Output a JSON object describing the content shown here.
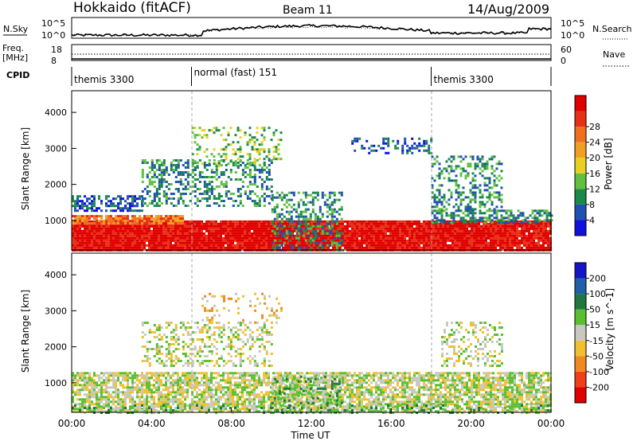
{
  "header": {
    "station": "Hokkaido (fitACF)",
    "beam": "Beam 11",
    "date": "14/Aug/2009"
  },
  "panels": {
    "nsky": {
      "label": "N.Sky",
      "y_ticks": [
        "10^5",
        "10^0"
      ]
    },
    "nsearch": {
      "label": "N.Search",
      "y_ticks": [
        "10^5",
        "10^0"
      ]
    },
    "freq": {
      "label_top": "Freq.",
      "label_bottom": "[MHz]",
      "y_ticks": [
        "18",
        "8"
      ]
    },
    "nave": {
      "label": "Nave",
      "y_ticks": [
        "60",
        "0"
      ]
    },
    "cpid": {
      "label": "CPID"
    }
  },
  "cpid_segments": [
    {
      "name": "themis 3300",
      "start_hour": 0,
      "end_hour": 6
    },
    {
      "name": "normal (fast) 151",
      "start_hour": 6,
      "end_hour": 18
    },
    {
      "name": "themis 3300",
      "start_hour": 18,
      "end_hour": 24
    }
  ],
  "axes": {
    "x_label": "Time UT",
    "x_ticks": [
      "00:00",
      "04:00",
      "08:00",
      "12:00",
      "16:00",
      "20:00",
      "00:00"
    ],
    "y_label": "Slant Range [km]",
    "y_ticks": [
      "1000",
      "2000",
      "3000",
      "4000"
    ]
  },
  "colorbars": {
    "power": {
      "label": "Power [dB]",
      "ticks": [
        "4",
        "8",
        "12",
        "16",
        "20",
        "24",
        "28"
      ],
      "colors": [
        "#1010e0",
        "#2050b0",
        "#1a8a4a",
        "#60c040",
        "#e8d020",
        "#f0a020",
        "#f07020",
        "#e83018",
        "#e00000"
      ]
    },
    "velocity": {
      "label": "Velocity [m s^-1]",
      "ticks": [
        "200",
        "100",
        "50",
        "15",
        "-15",
        "-50",
        "-100",
        "-200"
      ],
      "colors": [
        "#1515c8",
        "#2060a8",
        "#207840",
        "#58c030",
        "#c8c8c0",
        "#f0c030",
        "#f08a20",
        "#f04018",
        "#e00000"
      ]
    }
  },
  "chart_data": [
    {
      "type": "heatmap",
      "name": "Power",
      "x_range_hours": [
        0,
        24
      ],
      "y_range_km": [
        180,
        4600
      ],
      "z_label": "Power [dB]",
      "z_range": [
        0,
        30
      ],
      "scatter_regions": [
        {
          "t": [
            0.0,
            24.0
          ],
          "r": [
            180,
            1000
          ],
          "level": 8,
          "density": 0.98
        },
        {
          "t": [
            0.0,
            5.6
          ],
          "r": [
            900,
            1150
          ],
          "level": 6,
          "density": 0.9
        },
        {
          "t": [
            0.0,
            3.5
          ],
          "r": [
            1300,
            1700
          ],
          "level": 1,
          "density": 0.55
        },
        {
          "t": [
            3.5,
            10.0
          ],
          "r": [
            1400,
            2700
          ],
          "level": 2,
          "density": 0.4
        },
        {
          "t": [
            6.0,
            10.5
          ],
          "r": [
            2500,
            3600
          ],
          "level": 3,
          "density": 0.25
        },
        {
          "t": [
            10.0,
            13.5
          ],
          "r": [
            200,
            1800
          ],
          "level": 2,
          "density": 0.45
        },
        {
          "t": [
            14.0,
            18.0
          ],
          "r": [
            2900,
            3300
          ],
          "level": 1,
          "density": 0.3
        },
        {
          "t": [
            18.0,
            21.5
          ],
          "r": [
            1300,
            2800
          ],
          "level": 2,
          "density": 0.35
        },
        {
          "t": [
            18.0,
            24.0
          ],
          "r": [
            950,
            1300
          ],
          "level": 2,
          "density": 0.6
        }
      ]
    },
    {
      "type": "heatmap",
      "name": "Velocity",
      "x_range_hours": [
        0,
        24
      ],
      "y_range_km": [
        180,
        4600
      ],
      "z_label": "Velocity [m s^-1]",
      "z_range": [
        -200,
        200
      ],
      "scatter_regions": [
        {
          "t": [
            0.0,
            24.0
          ],
          "r": [
            180,
            1300
          ],
          "level": 4,
          "density": 0.75
        },
        {
          "t": [
            0.0,
            24.0
          ],
          "r": [
            180,
            400
          ],
          "level": 3,
          "density": 0.35
        },
        {
          "t": [
            3.5,
            10.0
          ],
          "r": [
            1500,
            2700
          ],
          "level": 4,
          "density": 0.35
        },
        {
          "t": [
            6.5,
            10.5
          ],
          "r": [
            2700,
            3500
          ],
          "level": 5,
          "density": 0.15
        },
        {
          "t": [
            10.0,
            13.5
          ],
          "r": [
            200,
            1200
          ],
          "level": 3,
          "density": 0.35
        },
        {
          "t": [
            18.5,
            21.5
          ],
          "r": [
            1500,
            2700
          ],
          "level": 4,
          "density": 0.3
        }
      ]
    }
  ]
}
